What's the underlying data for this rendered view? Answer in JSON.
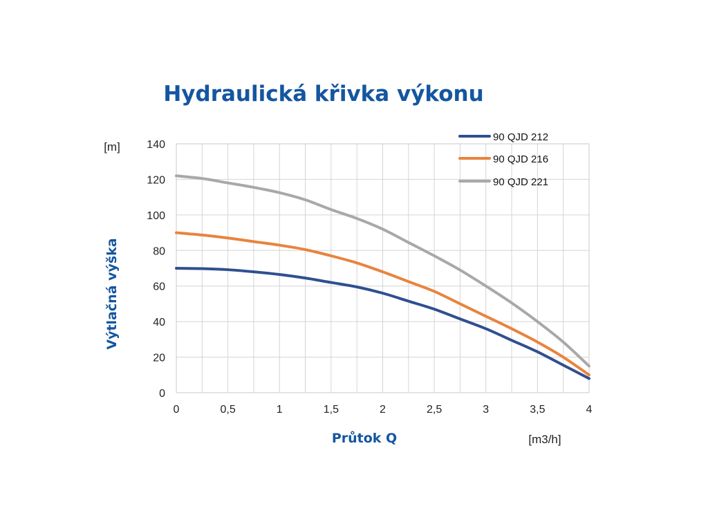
{
  "chart_data": {
    "type": "line",
    "title": "Hydraulická křivka výkonu",
    "ylabel": "Výtlačná výška",
    "xlabel": "Průtok Q",
    "y_unit": "[m]",
    "x_unit": "[m3/h]",
    "xlim": [
      0,
      4
    ],
    "ylim": [
      0,
      140
    ],
    "x_ticks": [
      "0",
      "0,5",
      "1",
      "1,5",
      "2",
      "2,5",
      "3",
      "3,5",
      "4"
    ],
    "x_tick_values": [
      0,
      0.5,
      1,
      1.5,
      2,
      2.5,
      3,
      3.5,
      4
    ],
    "y_ticks": [
      "0",
      "20",
      "40",
      "60",
      "80",
      "100",
      "120",
      "140"
    ],
    "y_tick_values": [
      0,
      20,
      40,
      60,
      80,
      100,
      120,
      140
    ],
    "grid": true,
    "legend_position": "top-right",
    "x": [
      0,
      0.25,
      0.5,
      0.75,
      1,
      1.25,
      1.5,
      1.75,
      2,
      2.25,
      2.5,
      2.75,
      3,
      3.25,
      3.5,
      3.75,
      4
    ],
    "series": [
      {
        "name": "90 QJD 212",
        "color": "#2f4f8f",
        "values": [
          70,
          69.8,
          69.2,
          68,
          66.5,
          64.5,
          62,
          59.5,
          56,
          51.5,
          47,
          41.5,
          36,
          29.5,
          23,
          15.5,
          8
        ]
      },
      {
        "name": "90 QJD 216",
        "color": "#e8843e",
        "values": [
          90,
          88.7,
          87,
          85,
          83,
          80.5,
          77,
          73,
          68,
          62.5,
          57,
          50,
          43,
          36,
          28.5,
          20,
          10
        ]
      },
      {
        "name": "90 QJD 221",
        "color": "#a8a8a8",
        "values": [
          122,
          120.5,
          118,
          115.5,
          112.5,
          108.5,
          103,
          98,
          92,
          84.5,
          77,
          69,
          60,
          50.5,
          40,
          28.5,
          15
        ]
      }
    ]
  }
}
